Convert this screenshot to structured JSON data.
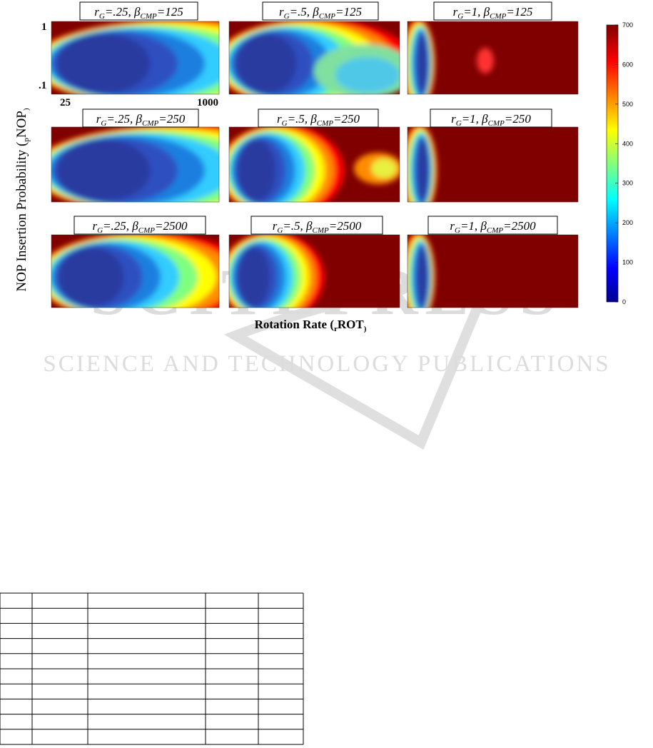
{
  "figure": {
    "panels": [
      {
        "title": [
          "r",
          "G",
          "=.25,  β",
          "CMP",
          "=125"
        ]
      },
      {
        "title": [
          "r",
          "G",
          "=.5,  β",
          "CMP",
          "=125"
        ]
      },
      {
        "title": [
          "r",
          "G",
          "=1,  β",
          "CMP",
          "=125"
        ]
      },
      {
        "title": [
          "r",
          "G",
          "=.25,  β",
          "CMP",
          "=250"
        ]
      },
      {
        "title": [
          "r",
          "G",
          "=.5,  β",
          "CMP",
          "=250"
        ]
      },
      {
        "title": [
          "r",
          "G",
          "=1,  β",
          "CMP",
          "=250"
        ]
      },
      {
        "title": [
          "r",
          "G",
          "=.25,  β",
          "CMP",
          "=2500"
        ]
      },
      {
        "title": [
          "r",
          "G",
          "=.5,  β",
          "CMP",
          "=2500"
        ]
      },
      {
        "title": [
          "r",
          "G",
          "=1,  β",
          "CMP",
          "=2500"
        ]
      }
    ],
    "y_label": [
      "NOP Insertion Probability (",
      "p",
      "NOP",
      ")"
    ],
    "x_label": [
      "Rotation Rate (",
      "r",
      "ROT",
      ")"
    ],
    "y_ticks": [
      "1",
      ".1"
    ],
    "x_ticks": [
      "25",
      "1000"
    ],
    "colorbar_ticks": [
      "700",
      "600",
      "500",
      "400",
      "300",
      "200",
      "100",
      "0"
    ]
  },
  "watermark": {
    "logo": "SCITEPRESS",
    "tagline": "SCIENCE AND TECHNOLOGY PUBLICATIONS"
  }
}
